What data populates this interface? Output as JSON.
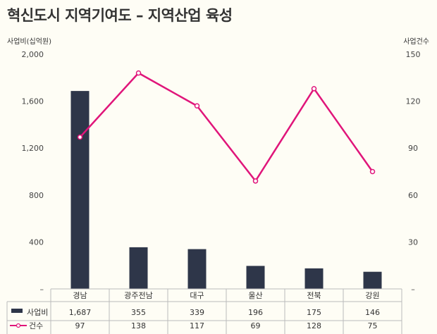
{
  "chart_data": {
    "type": "bar+line",
    "title": "혁신도시 지역기여도 – 지역산업 육성",
    "categories": [
      "경남",
      "광주전남",
      "대구",
      "울산",
      "전북",
      "강원"
    ],
    "y_left": {
      "label": "사업비(십억원)",
      "range": [
        0,
        2000
      ],
      "ticks": [
        "–",
        "400",
        "800",
        "1,200",
        "1,600",
        "2,000"
      ]
    },
    "y_right": {
      "label": "사업건수",
      "range": [
        0,
        150
      ],
      "ticks": [
        "–",
        "30",
        "60",
        "90",
        "120",
        "150"
      ]
    },
    "grid": false,
    "legend": "table-bottom",
    "series": [
      {
        "name": "사업비",
        "type": "bar",
        "axis": "left",
        "color": "#2e3649",
        "values": [
          1687,
          355,
          339,
          196,
          175,
          146
        ],
        "labels": [
          "1,687",
          "355",
          "339",
          "196",
          "175",
          "146"
        ]
      },
      {
        "name": "건수",
        "type": "line",
        "axis": "right",
        "color": "#e0157a",
        "values": [
          97,
          138,
          117,
          69,
          128,
          75
        ],
        "labels": [
          "97",
          "138",
          "117",
          "69",
          "128",
          "75"
        ]
      }
    ]
  }
}
